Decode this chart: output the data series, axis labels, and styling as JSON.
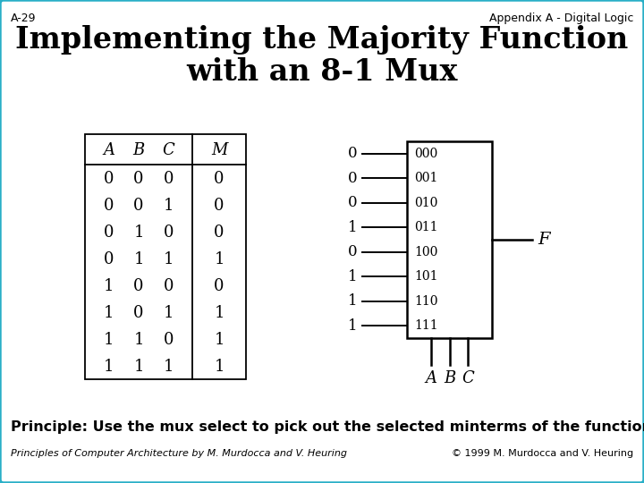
{
  "slide_number": "A-29",
  "appendix_label": "Appendix A - Digital Logic",
  "title_line1": "Implementing the Majority Function",
  "title_line2": "with an 8-1 Mux",
  "truth_table": {
    "headers": [
      "A",
      "B",
      "C",
      "M"
    ],
    "rows": [
      [
        0,
        0,
        0,
        0
      ],
      [
        0,
        0,
        1,
        0
      ],
      [
        0,
        1,
        0,
        0
      ],
      [
        0,
        1,
        1,
        1
      ],
      [
        1,
        0,
        0,
        0
      ],
      [
        1,
        0,
        1,
        1
      ],
      [
        1,
        1,
        0,
        1
      ],
      [
        1,
        1,
        1,
        1
      ]
    ]
  },
  "mux_inputs": [
    0,
    0,
    0,
    1,
    0,
    1,
    1,
    1
  ],
  "mux_labels": [
    "000",
    "001",
    "010",
    "011",
    "100",
    "101",
    "110",
    "111"
  ],
  "mux_output_label": "F",
  "mux_select_labels": [
    "A",
    "B",
    "C"
  ],
  "principle_text": "Principle: Use the mux select to pick out the selected minterms of the function.",
  "footer_left": "Principles of Computer Architecture by M. Murdocca and V. Heuring",
  "footer_right": "© 1999 M. Murdocca and V. Heuring",
  "bg_color": "#ffffff",
  "border_color": "#29afc7",
  "title_fontsize": 24,
  "body_fontsize": 13,
  "small_fontsize": 9
}
